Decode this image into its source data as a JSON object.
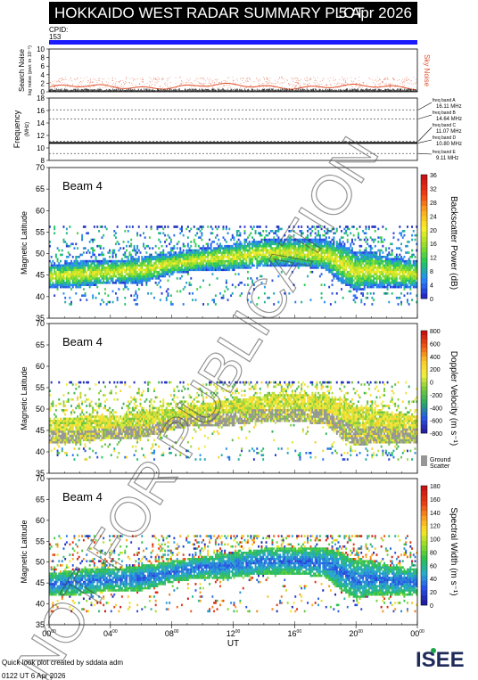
{
  "header": {
    "title": "HOKKAIDO WEST RADAR SUMMARY PLOT",
    "date": "5 Apr 2026",
    "cpid_label": "CPID:",
    "cpid_value": "153"
  },
  "noise_panel": {
    "ylabel": "Search Noise",
    "ylabel_small": "log noise (pwr. in 10⁻⁵)",
    "right_label": "Sky Noise",
    "ticks": [
      "0",
      "2",
      "4",
      "6",
      "8",
      "10"
    ]
  },
  "freq_panel": {
    "ylabel": "Frequency",
    "yunit": "(MHz)",
    "ticks": [
      "8",
      "10",
      "12",
      "14",
      "16",
      "18"
    ],
    "bands": [
      {
        "name": "freq band A",
        "value": "16.11 MHz"
      },
      {
        "name": "freq band B",
        "value": "14.64 MHz"
      },
      {
        "name": "freq band C",
        "value": "11.07 MHz"
      },
      {
        "name": "freq band D",
        "value": "10.80 MHz"
      },
      {
        "name": "freq band E",
        "value": "9.11 MHz"
      }
    ]
  },
  "panels": [
    {
      "beam": "Beam  4",
      "ylabel": "Magnetic Latitude",
      "cbar_label": "Backscatter Power (dB)",
      "cbar_ticks": [
        "0",
        "4",
        "8",
        "12",
        "16",
        "20",
        "24",
        "28",
        "32",
        "36"
      ]
    },
    {
      "beam": "Beam  4",
      "ylabel": "Magnetic Latitude",
      "cbar_label": "Doppler Velocity (m s⁻¹)",
      "cbar_ticks": [
        "-800",
        "-600",
        "-400",
        "-200",
        "0",
        "200",
        "400",
        "600",
        "800"
      ],
      "gs_label1": "Ground",
      "gs_label2": "Scatter"
    },
    {
      "beam": "Beam  4",
      "ylabel": "Magnetic Latitude",
      "cbar_label": "Spectral Width (m s⁻¹)",
      "cbar_ticks": [
        "0",
        "20",
        "40",
        "60",
        "80",
        "100",
        "120",
        "140",
        "160",
        "180"
      ]
    }
  ],
  "lat_ticks": [
    "35",
    "40",
    "45",
    "50",
    "55",
    "60",
    "65",
    "70"
  ],
  "xaxis": {
    "label": "UT",
    "ticks": [
      "00",
      "04",
      "08",
      "12",
      "16",
      "20",
      "00"
    ]
  },
  "watermark": "NOT FOR PUBLICATION",
  "footer": {
    "line1": "Quick look plot created by sddata adm",
    "line2": "0122 UT  6 Apr 2026"
  },
  "logo": "ISEE",
  "chart_data": {
    "type": "heatmap",
    "x_units": "UT hour",
    "xlim": [
      0,
      24
    ],
    "y_units": "Magnetic Latitude (deg)",
    "ylim": [
      35,
      70
    ],
    "noise_ylim": [
      0,
      10
    ],
    "freq_ylim": [
      8,
      18
    ],
    "freq_bands_mhz": [
      16.11,
      14.64,
      11.07,
      10.8,
      9.11
    ],
    "scatter_band": {
      "x": [
        0,
        2,
        4,
        6,
        8,
        10,
        12,
        14,
        16,
        18,
        19,
        20,
        21,
        22,
        24
      ],
      "lower": [
        42,
        42,
        43,
        43,
        45,
        46,
        46,
        47,
        47,
        46,
        43,
        41,
        42,
        42,
        42
      ],
      "upper": [
        47,
        48,
        48,
        49,
        50,
        51,
        52,
        53,
        53,
        53,
        52,
        50,
        50,
        49,
        48
      ]
    },
    "power_cbar_range": [
      0,
      36
    ],
    "velocity_cbar_range": [
      -800,
      800
    ],
    "width_cbar_range": [
      0,
      180
    ]
  }
}
